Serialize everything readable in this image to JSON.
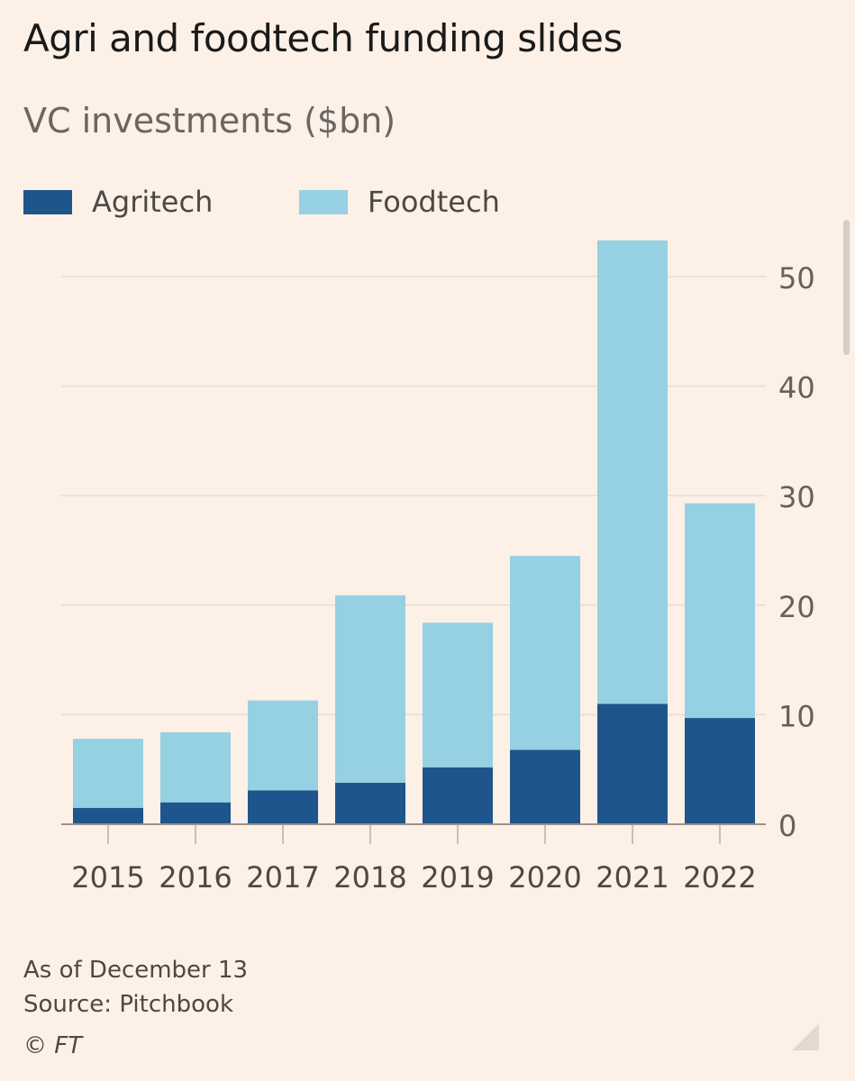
{
  "chart_data": {
    "type": "bar",
    "stacked": true,
    "title": "Agri and foodtech funding slides",
    "subtitle": "VC investments ($bn)",
    "categories": [
      "2015",
      "2016",
      "2017",
      "2018",
      "2019",
      "2020",
      "2021",
      "2022"
    ],
    "series": [
      {
        "name": "Agritech",
        "color": "#1e558c",
        "values": [
          1.5,
          2.0,
          3.1,
          3.8,
          5.2,
          6.8,
          11.0,
          9.7
        ]
      },
      {
        "name": "Foodtech",
        "color": "#96d0e3",
        "values": [
          6.3,
          6.4,
          8.2,
          17.1,
          13.2,
          17.7,
          42.3,
          19.6
        ]
      }
    ],
    "ylim": [
      0,
      55
    ],
    "yticks": [
      0,
      10,
      20,
      30,
      40,
      50
    ],
    "yaxis_position": "right",
    "grid": true,
    "legend_position": "top-left",
    "xlabel": "",
    "ylabel": ""
  },
  "notes": {
    "as_of": "As of December 13",
    "source": "Source: Pitchbook",
    "copyright": "© FT"
  }
}
